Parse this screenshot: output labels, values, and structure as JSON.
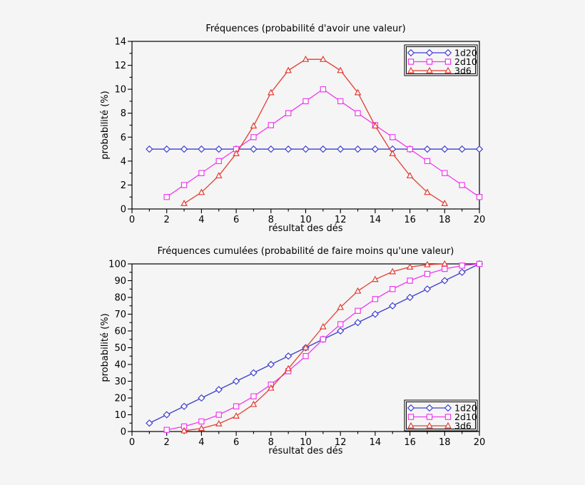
{
  "page": {
    "background_color": "#f5f5f5",
    "axis_color": "#000000",
    "legend_background": "#f5f5f5"
  },
  "chart_data": [
    {
      "id": "frequencies",
      "type": "line",
      "title": "Fréquences (probabilité d'avoir une valeur)",
      "xlabel": "résultat des dés",
      "ylabel": "probabilité (%)",
      "xlim": [
        0,
        20
      ],
      "ylim": [
        0,
        14
      ],
      "xticks": [
        0,
        2,
        4,
        6,
        8,
        10,
        12,
        14,
        16,
        18,
        20
      ],
      "yticks": [
        0,
        2,
        4,
        6,
        8,
        10,
        12,
        14
      ],
      "xminor": 1,
      "yminor": 1,
      "grid": false,
      "legend_position": "upper-right",
      "series": [
        {
          "name": "1d20",
          "color": "#3f3fcf",
          "marker": "diamond",
          "x": [
            1,
            2,
            3,
            4,
            5,
            6,
            7,
            8,
            9,
            10,
            11,
            12,
            13,
            14,
            15,
            16,
            17,
            18,
            19,
            20
          ],
          "y": [
            5,
            5,
            5,
            5,
            5,
            5,
            5,
            5,
            5,
            5,
            5,
            5,
            5,
            5,
            5,
            5,
            5,
            5,
            5,
            5
          ]
        },
        {
          "name": "2d10",
          "color": "#ee3cee",
          "marker": "square",
          "x": [
            2,
            3,
            4,
            5,
            6,
            7,
            8,
            9,
            10,
            11,
            12,
            13,
            14,
            15,
            16,
            17,
            18,
            19,
            20
          ],
          "y": [
            1,
            2,
            3,
            4,
            5,
            6,
            7,
            8,
            9,
            10,
            9,
            8,
            7,
            6,
            5,
            4,
            3,
            2,
            1
          ]
        },
        {
          "name": "3d6",
          "color": "#e23d32",
          "marker": "triangle",
          "x": [
            3,
            4,
            5,
            6,
            7,
            8,
            9,
            10,
            11,
            12,
            13,
            14,
            15,
            16,
            17,
            18
          ],
          "y": [
            0.46,
            1.39,
            2.78,
            4.63,
            6.94,
            9.72,
            11.57,
            12.5,
            12.5,
            11.57,
            9.72,
            6.94,
            4.63,
            2.78,
            1.39,
            0.46
          ]
        }
      ]
    },
    {
      "id": "cumulative",
      "type": "line",
      "title": "Fréquences cumulées (probabilité de faire moins qu'une valeur)",
      "xlabel": "résultat des dés",
      "ylabel": "probabilité (%)",
      "xlim": [
        0,
        20
      ],
      "ylim": [
        0,
        100
      ],
      "xticks": [
        0,
        2,
        4,
        6,
        8,
        10,
        12,
        14,
        16,
        18,
        20
      ],
      "yticks": [
        0,
        10,
        20,
        30,
        40,
        50,
        60,
        70,
        80,
        90,
        100
      ],
      "xminor": 1,
      "yminor": 5,
      "grid": false,
      "legend_position": "lower-right",
      "series": [
        {
          "name": "1d20",
          "color": "#3f3fcf",
          "marker": "diamond",
          "x": [
            1,
            2,
            3,
            4,
            5,
            6,
            7,
            8,
            9,
            10,
            11,
            12,
            13,
            14,
            15,
            16,
            17,
            18,
            19,
            20
          ],
          "y": [
            5,
            10,
            15,
            20,
            25,
            30,
            35,
            40,
            45,
            50,
            55,
            60,
            65,
            70,
            75,
            80,
            85,
            90,
            95,
            100
          ]
        },
        {
          "name": "2d10",
          "color": "#ee3cee",
          "marker": "square",
          "x": [
            2,
            3,
            4,
            5,
            6,
            7,
            8,
            9,
            10,
            11,
            12,
            13,
            14,
            15,
            16,
            17,
            18,
            19,
            20
          ],
          "y": [
            1,
            3,
            6,
            10,
            15,
            21,
            28,
            36,
            45,
            55,
            64,
            72,
            79,
            85,
            90,
            94,
            97,
            99,
            100
          ]
        },
        {
          "name": "3d6",
          "color": "#e23d32",
          "marker": "triangle",
          "x": [
            3,
            4,
            5,
            6,
            7,
            8,
            9,
            10,
            11,
            12,
            13,
            14,
            15,
            16,
            17,
            18
          ],
          "y": [
            0.46,
            1.85,
            4.63,
            9.26,
            16.2,
            25.93,
            37.5,
            50,
            62.5,
            74.07,
            83.8,
            90.74,
            95.37,
            98.15,
            99.54,
            100
          ]
        }
      ]
    }
  ]
}
